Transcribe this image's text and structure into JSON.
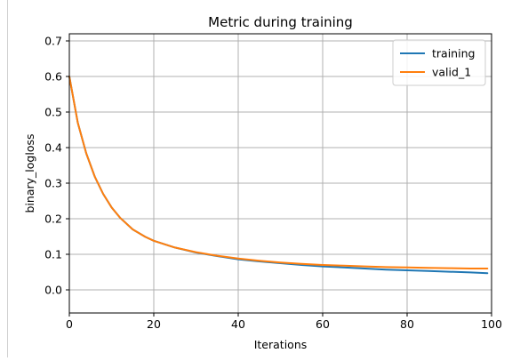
{
  "chart_data": {
    "type": "line",
    "title": "Metric during training",
    "xlabel": "Iterations",
    "ylabel": "binary_logloss",
    "xlim": [
      0,
      100
    ],
    "ylim": [
      -0.065,
      0.72
    ],
    "xticks": [
      0,
      20,
      40,
      60,
      80,
      100
    ],
    "yticks": [
      0.0,
      0.1,
      0.2,
      0.3,
      0.4,
      0.5,
      0.6,
      0.7
    ],
    "xtick_labels": [
      "0",
      "20",
      "40",
      "60",
      "80",
      "100"
    ],
    "ytick_labels": [
      "0.0",
      "0.1",
      "0.2",
      "0.3",
      "0.4",
      "0.5",
      "0.6",
      "0.7"
    ],
    "grid": true,
    "legend_position": "top-right",
    "x": [
      0,
      2,
      4,
      6,
      8,
      10,
      12,
      15,
      18,
      20,
      25,
      30,
      35,
      40,
      45,
      50,
      55,
      60,
      65,
      70,
      75,
      80,
      85,
      90,
      95,
      99
    ],
    "series": [
      {
        "name": "training",
        "color": "#1f77b4",
        "values": [
          0.6,
          0.47,
          0.384,
          0.319,
          0.27,
          0.232,
          0.203,
          0.17,
          0.149,
          0.138,
          0.119,
          0.105,
          0.095,
          0.086,
          0.08,
          0.075,
          0.07,
          0.066,
          0.063,
          0.06,
          0.057,
          0.055,
          0.053,
          0.051,
          0.049,
          0.047
        ]
      },
      {
        "name": "valid_1",
        "color": "#ff7f0e",
        "values": [
          0.6,
          0.47,
          0.384,
          0.319,
          0.27,
          0.232,
          0.203,
          0.17,
          0.149,
          0.138,
          0.119,
          0.106,
          0.096,
          0.088,
          0.082,
          0.077,
          0.073,
          0.07,
          0.068,
          0.066,
          0.064,
          0.063,
          0.062,
          0.061,
          0.06,
          0.06
        ]
      }
    ]
  }
}
